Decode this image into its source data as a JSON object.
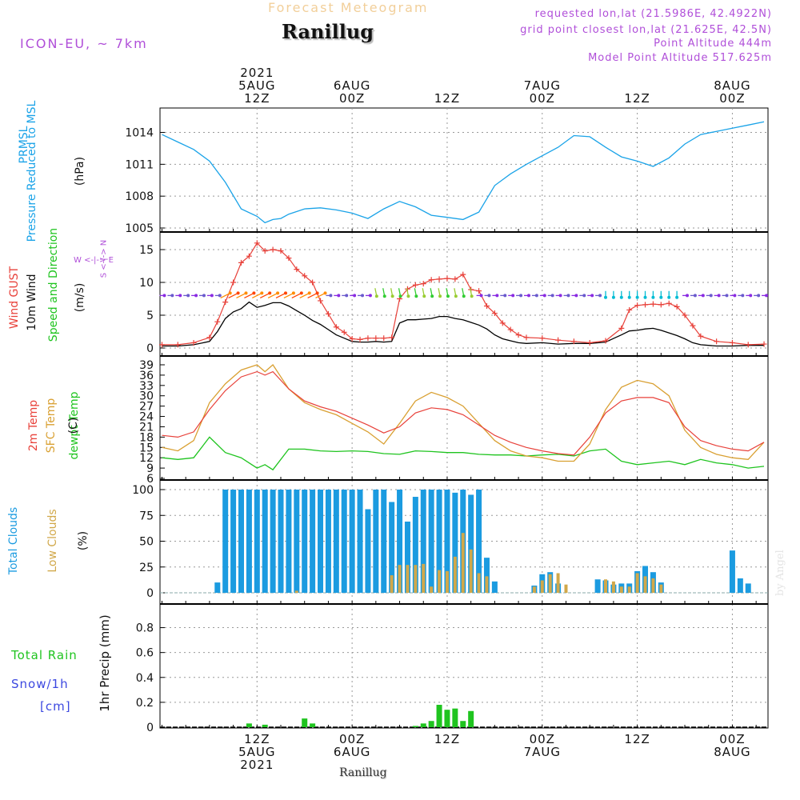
{
  "header": {
    "title_faint": "Forecast Meteogram",
    "title": "Ranillug",
    "model": "ICON-EU, ~ 7km",
    "requested": "requested lon,lat (21.5986E, 42.4922N)",
    "grid_point": "grid point closest lon,lat (21.625E, 42.5N)",
    "point_altitude": "Point Altitude 444m",
    "model_altitude": "Model Point Altitude 517.625m"
  },
  "footer": {
    "name": "Ranillug",
    "watermark": "by Angel"
  },
  "time_axis": {
    "top_labels": [
      {
        "t": 12,
        "lines": [
          "2021",
          "5AUG",
          "12Z"
        ]
      },
      {
        "t": 24,
        "lines": [
          "6AUG",
          "00Z"
        ]
      },
      {
        "t": 36,
        "lines": [
          "12Z"
        ]
      },
      {
        "t": 48,
        "lines": [
          "7AUG",
          "00Z"
        ]
      },
      {
        "t": 60,
        "lines": [
          "12Z"
        ]
      },
      {
        "t": 72,
        "lines": [
          "8AUG",
          "00Z"
        ]
      }
    ],
    "bottom_labels": [
      {
        "t": 12,
        "lines": [
          "12Z",
          "5AUG",
          "2021"
        ]
      },
      {
        "t": 24,
        "lines": [
          "00Z",
          "6AUG"
        ]
      },
      {
        "t": 36,
        "lines": [
          "12Z"
        ]
      },
      {
        "t": 48,
        "lines": [
          "00Z",
          "7AUG"
        ]
      },
      {
        "t": 60,
        "lines": [
          "12Z"
        ]
      },
      {
        "t": 72,
        "lines": [
          "00Z",
          "8AUG"
        ]
      }
    ]
  },
  "panel_labels": {
    "pressure": {
      "name": "PRMSL",
      "desc": "Pressure Reduced to MSL",
      "unit": "(hPa)"
    },
    "wind": {
      "gust": "Wind GUST",
      "wind": "10m Wind",
      "dir": "Speed and Direction",
      "unit": "(m/s)",
      "compass_we": "W <-|-> E",
      "compass_sn": "S <-|-> N"
    },
    "temp": {
      "t2m": "2m Temp",
      "sfc": "SFC Temp",
      "dew": "dewpt Temp",
      "unit": "(C)"
    },
    "clouds": {
      "total": "Total Clouds",
      "low": "Low Clouds",
      "unit": "(%)"
    },
    "precip": {
      "rain": "Total  Rain",
      "snow": "Snow/1h",
      "cm": "[cm]",
      "unit": "1hr Precip (mm)"
    }
  },
  "colors": {
    "pressure": "#1aa3e8",
    "gust": "#e8413a",
    "wind": "#000000",
    "t2m": "#e8413a",
    "sfc": "#d9a032",
    "dew": "#1fc41f",
    "total_cloud": "#1b9be0",
    "low_cloud": "#d1a84a",
    "rain": "#1fc41f",
    "snow": "#3c48e0",
    "purple": "#b04fd9",
    "grid": "#999999"
  },
  "chart_data": [
    {
      "type": "line",
      "id": "pressure",
      "title": "PRMSL Pressure Reduced to MSL",
      "ylabel": "(hPa)",
      "ylim": [
        1005,
        1016
      ],
      "yticks": [
        1005,
        1008,
        1011,
        1014
      ],
      "x": [
        0,
        2,
        4,
        6,
        8,
        10,
        12,
        13,
        14,
        15,
        16,
        18,
        20,
        22,
        24,
        26,
        28,
        30,
        32,
        34,
        36,
        38,
        40,
        42,
        44,
        46,
        48,
        50,
        52,
        54,
        56,
        58,
        60,
        62,
        64,
        66,
        68,
        70,
        72,
        74,
        76
      ],
      "series": [
        {
          "name": "PRMSL",
          "values": [
            1013.8,
            1013.1,
            1012.4,
            1011.3,
            1009.3,
            1006.8,
            1006.1,
            1005.5,
            1005.8,
            1005.9,
            1006.3,
            1006.8,
            1006.9,
            1006.7,
            1006.4,
            1005.9,
            1006.8,
            1007.5,
            1007.0,
            1006.2,
            1006.0,
            1005.8,
            1006.5,
            1009.0,
            1010.1,
            1011.0,
            1011.8,
            1012.6,
            1013.7,
            1013.6,
            1012.6,
            1011.7,
            1011.3,
            1010.8,
            1011.6,
            1012.9,
            1013.8,
            1014.1,
            1014.4,
            1014.7,
            1015.0
          ]
        }
      ]
    },
    {
      "type": "line",
      "id": "wind",
      "title": "Wind GUST / 10m Wind Speed and Direction",
      "ylabel": "(m/s)",
      "ylim": [
        0,
        17
      ],
      "yticks": [
        0,
        5,
        10,
        15
      ],
      "x": [
        0,
        2,
        4,
        6,
        7,
        8,
        9,
        10,
        11,
        12,
        13,
        14,
        15,
        16,
        17,
        18,
        19,
        20,
        21,
        22,
        23,
        24,
        25,
        26,
        27,
        28,
        29,
        30,
        31,
        32,
        33,
        34,
        35,
        36,
        37,
        38,
        39,
        40,
        41,
        42,
        43,
        44,
        45,
        46,
        48,
        50,
        52,
        54,
        56,
        58,
        59,
        60,
        61,
        62,
        63,
        64,
        65,
        66,
        67,
        68,
        70,
        72,
        74,
        76
      ],
      "series": [
        {
          "name": "Wind GUST",
          "values": [
            0.5,
            0.5,
            0.8,
            1.6,
            4.0,
            7.0,
            10.0,
            13.0,
            14.0,
            16.0,
            14.8,
            15.0,
            14.8,
            13.7,
            12.0,
            11.0,
            10.0,
            7.2,
            5.2,
            3.2,
            2.4,
            1.4,
            1.3,
            1.5,
            1.5,
            1.5,
            1.6,
            7.5,
            9.0,
            9.6,
            9.8,
            10.4,
            10.5,
            10.6,
            10.5,
            11.2,
            8.9,
            8.7,
            6.4,
            5.3,
            3.8,
            2.8,
            2.0,
            1.6,
            1.5,
            1.2,
            1.0,
            0.8,
            1.1,
            3.0,
            5.8,
            6.5,
            6.6,
            6.7,
            6.6,
            6.8,
            6.3,
            5.0,
            3.4,
            1.8,
            1.0,
            0.8,
            0.5,
            0.6
          ]
        },
        {
          "name": "10m Wind",
          "values": [
            0.3,
            0.3,
            0.5,
            1.0,
            2.5,
            4.5,
            5.5,
            6.0,
            7.0,
            6.2,
            6.5,
            6.9,
            6.9,
            6.4,
            5.7,
            5.0,
            4.2,
            3.6,
            2.8,
            2.0,
            1.5,
            1.0,
            0.9,
            0.9,
            1.0,
            0.9,
            1.0,
            3.8,
            4.3,
            4.3,
            4.4,
            4.5,
            4.8,
            4.8,
            4.5,
            4.3,
            3.9,
            3.5,
            2.9,
            2.0,
            1.4,
            1.1,
            0.8,
            0.7,
            0.8,
            0.6,
            0.7,
            0.7,
            0.9,
            2.0,
            2.6,
            2.7,
            2.9,
            3.0,
            2.7,
            2.3,
            1.9,
            1.4,
            0.8,
            0.5,
            0.3,
            0.3,
            0.4,
            0.4
          ]
        }
      ]
    },
    {
      "type": "line",
      "id": "temperature",
      "title": "2m Temp / SFC Temp / dewpt Temp",
      "ylabel": "(C)",
      "ylim": [
        6,
        40
      ],
      "yticks": [
        6,
        9,
        12,
        15,
        18,
        21,
        24,
        27,
        30,
        33,
        36,
        39
      ],
      "x": [
        0,
        2,
        4,
        6,
        8,
        10,
        12,
        13,
        14,
        16,
        18,
        20,
        22,
        24,
        26,
        28,
        30,
        32,
        34,
        36,
        38,
        40,
        42,
        44,
        46,
        48,
        50,
        52,
        54,
        56,
        58,
        60,
        62,
        64,
        66,
        68,
        70,
        72,
        74,
        76
      ],
      "series": [
        {
          "name": "2m Temp",
          "values": [
            18.5,
            18.0,
            19.5,
            26.0,
            31.5,
            35.5,
            37.0,
            36.0,
            37.0,
            32.0,
            28.5,
            26.8,
            25.5,
            23.5,
            21.5,
            19.2,
            21.0,
            25.0,
            26.5,
            26.0,
            24.5,
            21.5,
            18.5,
            16.5,
            15.0,
            14.0,
            13.2,
            12.8,
            18.0,
            25.0,
            28.5,
            29.5,
            29.5,
            28.0,
            21.0,
            17.0,
            15.5,
            14.5,
            14.0,
            16.5
          ]
        },
        {
          "name": "SFC Temp",
          "values": [
            15.0,
            14.0,
            17.0,
            28.0,
            33.5,
            37.5,
            39.0,
            37.0,
            39.0,
            32.0,
            28.0,
            26.0,
            24.5,
            22.0,
            19.5,
            16.0,
            22.0,
            28.5,
            31.0,
            29.5,
            27.0,
            22.0,
            17.0,
            14.0,
            12.5,
            12.0,
            11.0,
            11.0,
            16.0,
            26.0,
            32.5,
            34.5,
            33.5,
            30.0,
            20.0,
            15.0,
            13.0,
            12.0,
            11.5,
            16.5
          ]
        },
        {
          "name": "dewpt Temp",
          "values": [
            12.0,
            11.5,
            12.0,
            18.0,
            13.5,
            12.0,
            9.0,
            10.0,
            8.5,
            14.5,
            14.5,
            14.0,
            13.8,
            14.0,
            13.8,
            13.2,
            13.0,
            14.0,
            13.8,
            13.5,
            13.5,
            13.0,
            12.8,
            12.8,
            12.5,
            12.8,
            13.0,
            12.5,
            14.0,
            14.5,
            11.0,
            10.0,
            10.5,
            11.0,
            10.0,
            11.5,
            10.5,
            10.0,
            9.0,
            9.5
          ]
        }
      ]
    },
    {
      "type": "bar",
      "id": "clouds",
      "title": "Total Clouds / Low Clouds",
      "ylabel": "(%)",
      "ylim": [
        0,
        105
      ],
      "yticks": [
        0,
        25,
        50,
        75,
        100
      ],
      "x": [
        7,
        8,
        9,
        10,
        11,
        12,
        13,
        14,
        15,
        16,
        17,
        18,
        19,
        20,
        21,
        22,
        23,
        24,
        25,
        26,
        27,
        28,
        29,
        30,
        31,
        32,
        33,
        34,
        35,
        36,
        37,
        38,
        39,
        40,
        41,
        42,
        43,
        46,
        47,
        48,
        49,
        50,
        51,
        55,
        56,
        57,
        58,
        59,
        60,
        61,
        62,
        63,
        64,
        72,
        73,
        74
      ],
      "series": [
        {
          "name": "Total Clouds",
          "values": [
            10,
            100,
            100,
            100,
            100,
            100,
            100,
            100,
            100,
            100,
            100,
            100,
            100,
            100,
            100,
            100,
            100,
            100,
            100,
            81,
            100,
            100,
            88,
            100,
            69,
            93,
            100,
            100,
            100,
            100,
            97,
            100,
            95,
            100,
            34,
            11,
            0,
            0,
            7,
            18,
            20,
            9,
            0,
            13,
            12,
            8,
            9,
            9,
            21,
            26,
            20,
            10,
            0,
            41,
            14,
            9
          ]
        },
        {
          "name": "Low Clouds",
          "values": [
            0,
            0,
            0,
            0,
            0,
            0,
            0,
            0,
            0,
            0,
            2,
            0,
            0,
            0,
            0,
            0,
            0,
            0,
            0,
            0,
            0,
            0,
            17,
            27,
            27,
            27,
            28,
            6,
            22,
            21,
            35,
            58,
            42,
            19,
            16,
            0,
            0,
            0,
            6,
            12,
            18,
            19,
            8,
            0,
            13,
            11,
            6,
            6,
            19,
            16,
            14,
            8,
            0,
            0,
            0,
            0
          ]
        }
      ]
    },
    {
      "type": "bar",
      "id": "precip",
      "title": "1hr Precip",
      "ylabel": "1hr Precip (mm)",
      "ylim": [
        0,
        1.0
      ],
      "yticks": [
        0,
        0.2,
        0.4,
        0.6,
        0.8
      ],
      "x": [
        11,
        13,
        18,
        19,
        32,
        33,
        34,
        35,
        36,
        37,
        38,
        39
      ],
      "series": [
        {
          "name": "Total Rain",
          "values": [
            0.03,
            0.02,
            0.07,
            0.03,
            0.01,
            0.03,
            0.05,
            0.18,
            0.14,
            0.15,
            0.05,
            0.13
          ]
        },
        {
          "name": "Snow/1h",
          "values": [
            0,
            0,
            0,
            0,
            0,
            0,
            0,
            0,
            0,
            0,
            0,
            0
          ]
        }
      ]
    }
  ]
}
